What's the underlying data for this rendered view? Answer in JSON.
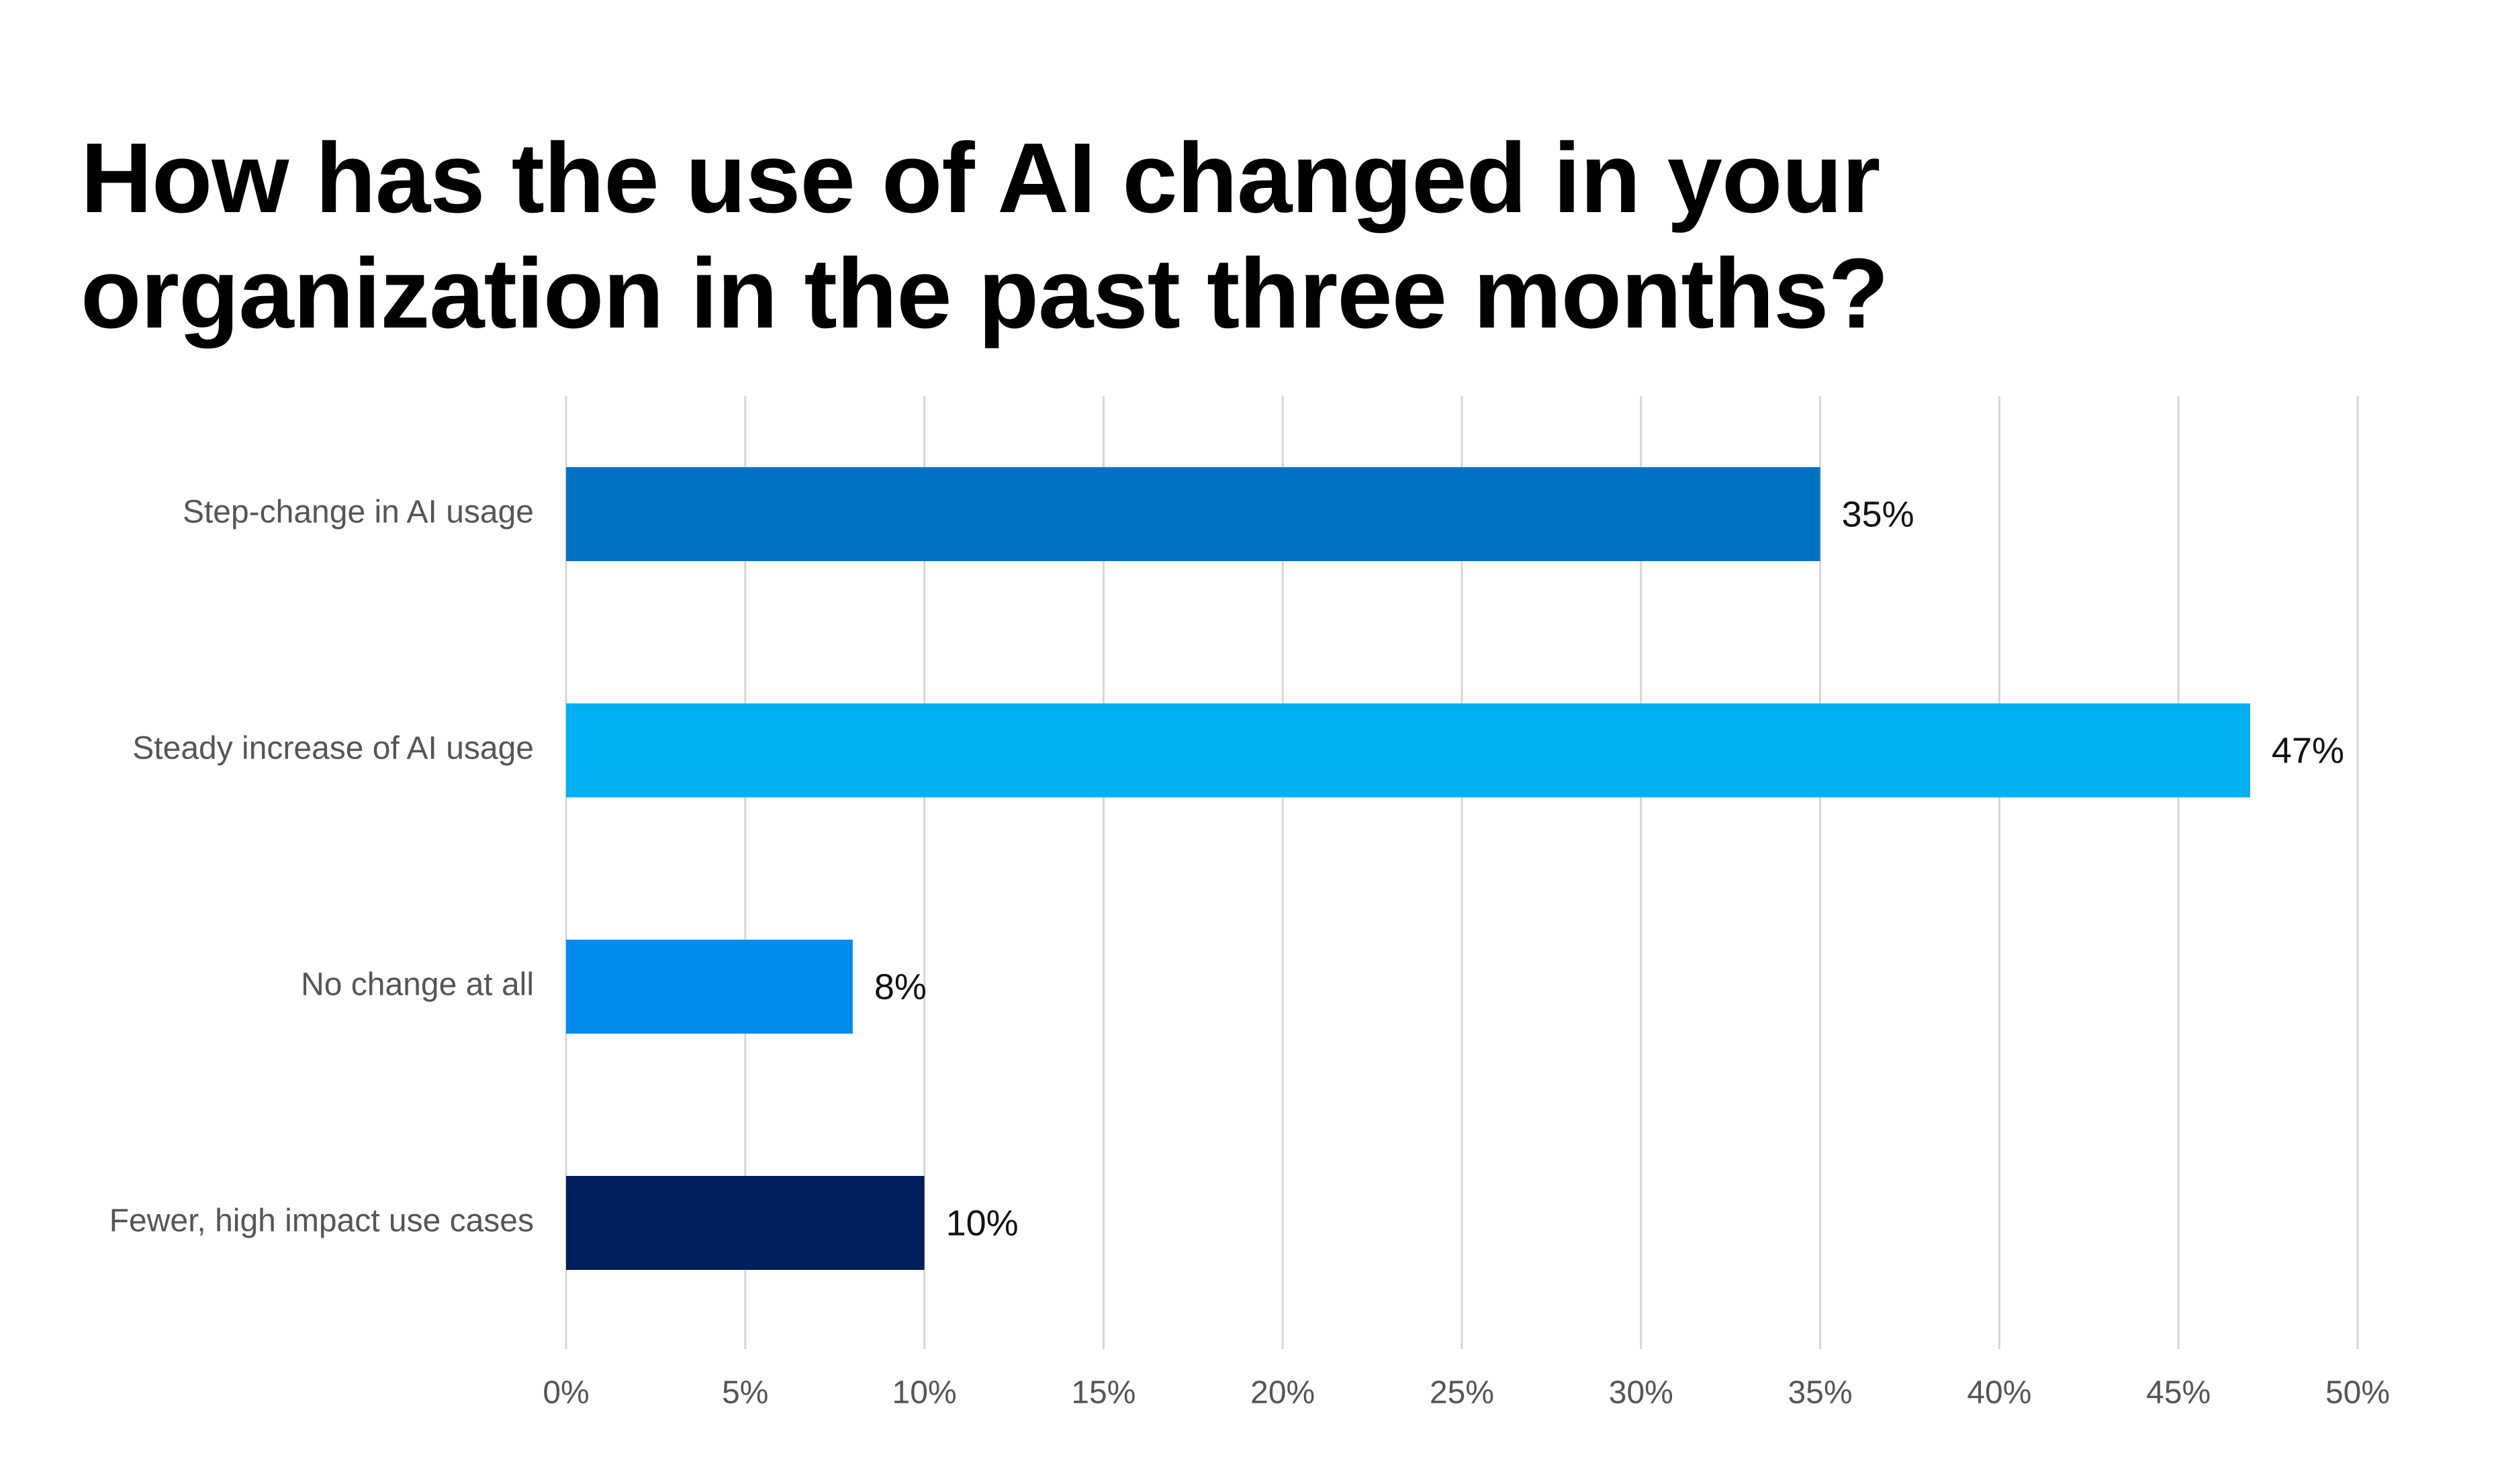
{
  "chart_data": {
    "type": "bar",
    "orientation": "horizontal",
    "title_lines": [
      "How has the use of AI changed in your",
      "organization in the past three months?"
    ],
    "categories": [
      "Step-change in AI usage",
      "Steady increase of AI usage",
      "No change at all",
      "Fewer, high impact use cases"
    ],
    "values": [
      35,
      47,
      8,
      10
    ],
    "data_labels": [
      "35%",
      "47%",
      "8%",
      "10%"
    ],
    "colors": [
      "#0072c3",
      "#00b0f0",
      "#008cef",
      "#001f5c"
    ],
    "xlim": [
      0,
      50
    ],
    "xticks": [
      0,
      5,
      10,
      15,
      20,
      25,
      30,
      35,
      40,
      45,
      50
    ],
    "xtick_labels": [
      "0%",
      "5%",
      "10%",
      "15%",
      "20%",
      "25%",
      "30%",
      "35%",
      "40%",
      "45%",
      "50%"
    ],
    "grid": "vertical",
    "legend": "none"
  }
}
